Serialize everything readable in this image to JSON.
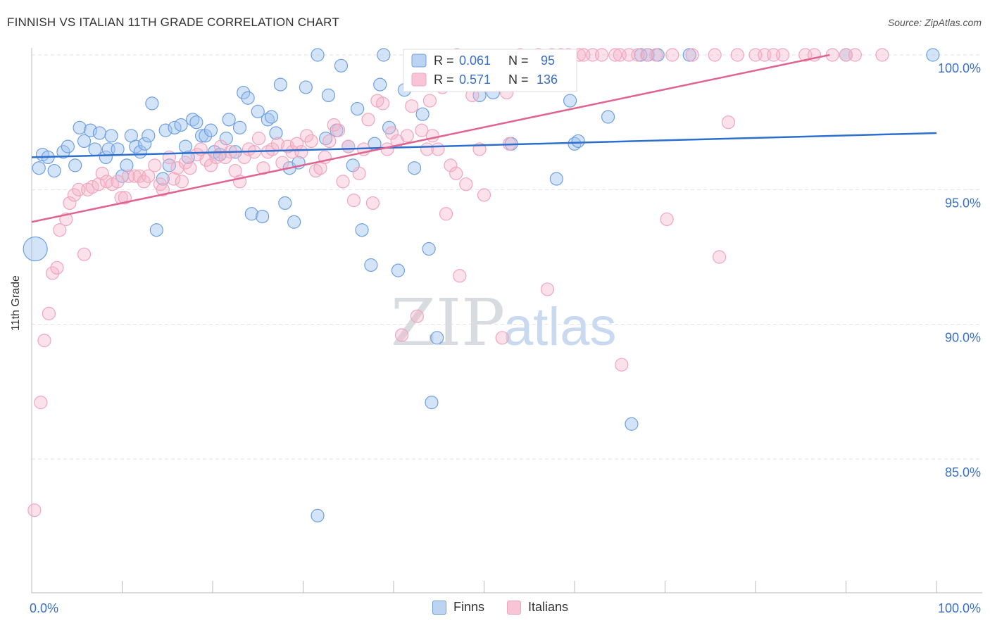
{
  "title": "FINNISH VS ITALIAN 11TH GRADE CORRELATION CHART",
  "source": "Source: ZipAtlas.com",
  "watermark": {
    "zip": "ZIP",
    "atlas": "atlas"
  },
  "colors": {
    "finns": "#6fa0e0",
    "italians": "#f0a6bd",
    "finns_line": "#2d6fcf",
    "italians_line": "#e0648f",
    "value_text": "#3a6fc8"
  },
  "legend": {
    "rows": [
      {
        "r_label": "R =",
        "r_value": "0.061",
        "n_label": "N =",
        "n_value": "95"
      },
      {
        "r_label": "R =",
        "r_value": "0.571",
        "n_label": "N =",
        "n_value": "136"
      }
    ],
    "bottom": [
      {
        "label": "Finns"
      },
      {
        "label": "Italians"
      }
    ]
  },
  "chart_data": {
    "type": "scatter",
    "title": "FINNISH VS ITALIAN 11TH GRADE CORRELATION CHART",
    "xlabel": "",
    "ylabel": "11th Grade",
    "xlim": [
      0,
      100
    ],
    "ylim": [
      80.5,
      101
    ],
    "x_tick_labels": [
      "0.0%",
      "100.0%"
    ],
    "y_ticks": [
      85,
      90,
      95,
      100
    ],
    "y_tick_labels": [
      "85.0%",
      "90.0%",
      "95.0%",
      "100.0%"
    ],
    "grid": true,
    "legend_position": "top-center",
    "series": [
      {
        "name": "Finns",
        "trend": {
          "x": [
            0,
            100
          ],
          "y": [
            96.2,
            97.1
          ]
        },
        "points": [
          [
            0.8,
            95.8
          ],
          [
            1.2,
            96.3
          ],
          [
            1.8,
            96.2
          ],
          [
            2.5,
            95.7
          ],
          [
            3.5,
            96.4
          ],
          [
            4.0,
            96.6
          ],
          [
            4.8,
            95.9
          ],
          [
            5.3,
            97.3
          ],
          [
            5.8,
            96.8
          ],
          [
            6.5,
            97.2
          ],
          [
            7.0,
            96.5
          ],
          [
            7.5,
            97.1
          ],
          [
            8.2,
            96.2
          ],
          [
            8.5,
            96.5
          ],
          [
            8.8,
            97.0
          ],
          [
            9.5,
            96.5
          ],
          [
            10.0,
            95.5
          ],
          [
            10.5,
            95.9
          ],
          [
            11.0,
            97.0
          ],
          [
            11.5,
            96.6
          ],
          [
            12.0,
            96.4
          ],
          [
            12.5,
            96.7
          ],
          [
            12.9,
            97.0
          ],
          [
            13.3,
            98.2
          ],
          [
            13.8,
            93.5
          ],
          [
            14.5,
            95.4
          ],
          [
            14.8,
            97.2
          ],
          [
            15.2,
            95.9
          ],
          [
            15.8,
            97.3
          ],
          [
            16.5,
            97.4
          ],
          [
            17.0,
            96.6
          ],
          [
            17.3,
            96.2
          ],
          [
            17.8,
            97.6
          ],
          [
            18.2,
            97.5
          ],
          [
            18.8,
            97.0
          ],
          [
            19.2,
            97.0
          ],
          [
            19.8,
            97.2
          ],
          [
            20.2,
            96.4
          ],
          [
            20.8,
            96.3
          ],
          [
            21.5,
            96.9
          ],
          [
            21.8,
            97.6
          ],
          [
            22.5,
            96.4
          ],
          [
            23.0,
            97.3
          ],
          [
            23.4,
            98.6
          ],
          [
            23.9,
            98.4
          ],
          [
            24.3,
            94.1
          ],
          [
            25.0,
            97.9
          ],
          [
            25.5,
            94.0
          ],
          [
            26.1,
            97.6
          ],
          [
            26.5,
            97.7
          ],
          [
            27.0,
            97.1
          ],
          [
            27.5,
            98.9
          ],
          [
            28.0,
            94.5
          ],
          [
            28.5,
            95.8
          ],
          [
            29.0,
            93.8
          ],
          [
            29.5,
            96.0
          ],
          [
            30.3,
            98.8
          ],
          [
            31.6,
            100.0
          ],
          [
            32.5,
            96.9
          ],
          [
            32.8,
            98.5
          ],
          [
            33.7,
            97.2
          ],
          [
            34.2,
            99.6
          ],
          [
            35.0,
            96.6
          ],
          [
            35.5,
            95.9
          ],
          [
            36.5,
            93.5
          ],
          [
            37.5,
            92.2
          ],
          [
            37.9,
            96.7
          ],
          [
            38.5,
            98.9
          ],
          [
            38.9,
            100.0
          ],
          [
            39.5,
            97.3
          ],
          [
            40.5,
            92.0
          ],
          [
            41.2,
            98.7
          ],
          [
            42.3,
            95.8
          ],
          [
            43.2,
            97.8
          ],
          [
            43.9,
            92.8
          ],
          [
            44.2,
            87.1
          ],
          [
            44.8,
            89.5
          ],
          [
            49.5,
            98.5
          ],
          [
            51.0,
            98.6
          ],
          [
            53.0,
            96.7
          ],
          [
            58.0,
            95.4
          ],
          [
            59.5,
            98.3
          ],
          [
            60.0,
            96.7
          ],
          [
            60.4,
            96.8
          ],
          [
            63.7,
            97.7
          ],
          [
            66.3,
            86.3
          ],
          [
            67.3,
            100.0
          ],
          [
            68.1,
            100.0
          ],
          [
            69.2,
            100.0
          ],
          [
            72.7,
            100.0
          ],
          [
            90.0,
            100.0
          ],
          [
            99.6,
            100.0
          ],
          [
            0.4,
            92.8
          ],
          [
            31.6,
            82.9
          ],
          [
            36.0,
            98.0
          ]
        ]
      },
      {
        "name": "Italians",
        "trend": {
          "x": [
            0,
            88.2
          ],
          "y": [
            93.8,
            100.0
          ]
        },
        "points": [
          [
            0.3,
            83.1
          ],
          [
            1.0,
            87.1
          ],
          [
            1.4,
            89.4
          ],
          [
            1.9,
            90.4
          ],
          [
            2.3,
            91.9
          ],
          [
            2.8,
            92.1
          ],
          [
            3.1,
            93.5
          ],
          [
            3.8,
            93.9
          ],
          [
            4.2,
            94.5
          ],
          [
            4.7,
            94.8
          ],
          [
            5.2,
            95.0
          ],
          [
            5.8,
            92.6
          ],
          [
            6.2,
            95.0
          ],
          [
            6.7,
            95.1
          ],
          [
            7.4,
            95.2
          ],
          [
            7.8,
            95.6
          ],
          [
            8.3,
            95.3
          ],
          [
            8.9,
            95.2
          ],
          [
            9.5,
            95.3
          ],
          [
            9.9,
            94.7
          ],
          [
            10.3,
            94.7
          ],
          [
            10.7,
            95.5
          ],
          [
            11.4,
            95.5
          ],
          [
            11.9,
            95.5
          ],
          [
            12.4,
            95.3
          ],
          [
            12.9,
            95.5
          ],
          [
            13.6,
            95.9
          ],
          [
            14.2,
            95.2
          ],
          [
            14.5,
            95.0
          ],
          [
            15.2,
            96.2
          ],
          [
            15.7,
            95.4
          ],
          [
            16.1,
            95.8
          ],
          [
            16.6,
            95.3
          ],
          [
            17.0,
            96.0
          ],
          [
            17.5,
            95.8
          ],
          [
            18.3,
            96.3
          ],
          [
            18.7,
            96.5
          ],
          [
            19.3,
            96.1
          ],
          [
            19.8,
            95.9
          ],
          [
            20.4,
            96.2
          ],
          [
            20.9,
            96.6
          ],
          [
            21.4,
            96.2
          ],
          [
            22.0,
            96.4
          ],
          [
            22.5,
            95.7
          ],
          [
            23.0,
            95.3
          ],
          [
            23.5,
            96.2
          ],
          [
            24.0,
            96.5
          ],
          [
            24.6,
            96.4
          ],
          [
            25.1,
            96.9
          ],
          [
            25.6,
            95.8
          ],
          [
            26.1,
            96.4
          ],
          [
            26.6,
            96.5
          ],
          [
            27.2,
            96.7
          ],
          [
            27.7,
            96.0
          ],
          [
            28.3,
            96.6
          ],
          [
            28.8,
            96.4
          ],
          [
            29.3,
            96.7
          ],
          [
            29.8,
            96.4
          ],
          [
            30.4,
            97.0
          ],
          [
            30.9,
            96.8
          ],
          [
            31.4,
            95.7
          ],
          [
            31.9,
            95.8
          ],
          [
            32.4,
            96.2
          ],
          [
            32.9,
            96.8
          ],
          [
            33.4,
            97.4
          ],
          [
            33.9,
            97.2
          ],
          [
            34.4,
            95.3
          ],
          [
            35.0,
            96.6
          ],
          [
            35.6,
            94.6
          ],
          [
            36.2,
            95.6
          ],
          [
            36.7,
            96.5
          ],
          [
            37.2,
            97.6
          ],
          [
            37.7,
            94.5
          ],
          [
            38.2,
            98.3
          ],
          [
            38.8,
            98.2
          ],
          [
            39.3,
            96.5
          ],
          [
            39.8,
            97.1
          ],
          [
            40.4,
            96.8
          ],
          [
            40.9,
            89.6
          ],
          [
            41.5,
            97.0
          ],
          [
            42.0,
            98.1
          ],
          [
            42.6,
            90.3
          ],
          [
            43.1,
            97.2
          ],
          [
            43.7,
            96.5
          ],
          [
            44.3,
            97.0
          ],
          [
            44.9,
            96.5
          ],
          [
            45.4,
            98.8
          ],
          [
            45.8,
            94.1
          ],
          [
            46.3,
            95.9
          ],
          [
            46.9,
            95.6
          ],
          [
            47.3,
            91.8
          ],
          [
            48.0,
            95.2
          ],
          [
            48.7,
            98.5
          ],
          [
            49.5,
            96.5
          ],
          [
            50.0,
            94.8
          ],
          [
            50.7,
            98.9
          ],
          [
            52.0,
            89.5
          ],
          [
            52.8,
            96.7
          ],
          [
            54.0,
            100.0
          ],
          [
            55.5,
            98.9
          ],
          [
            57.0,
            91.3
          ],
          [
            58.5,
            100.0
          ],
          [
            59.3,
            100.0
          ],
          [
            60.5,
            100.0
          ],
          [
            62.0,
            100.0
          ],
          [
            63.0,
            100.0
          ],
          [
            64.5,
            100.0
          ],
          [
            65.2,
            88.5
          ],
          [
            66.0,
            100.0
          ],
          [
            67.0,
            100.0
          ],
          [
            69.0,
            100.0
          ],
          [
            70.2,
            93.9
          ],
          [
            70.8,
            100.0
          ],
          [
            75.5,
            100.0
          ],
          [
            76.0,
            92.5
          ],
          [
            77.0,
            97.5
          ],
          [
            80.0,
            100.0
          ],
          [
            81.0,
            100.0
          ],
          [
            83.0,
            100.0
          ],
          [
            85.5,
            100.0
          ],
          [
            88.5,
            100.0
          ],
          [
            90.0,
            100.0
          ],
          [
            91.0,
            100.0
          ],
          [
            94.0,
            100.0
          ],
          [
            56.0,
            100.0
          ],
          [
            57.5,
            100.0
          ],
          [
            61.0,
            100.0
          ],
          [
            65.0,
            100.0
          ],
          [
            68.0,
            100.0
          ],
          [
            73.0,
            100.0
          ],
          [
            78.0,
            100.0
          ],
          [
            82.0,
            100.0
          ],
          [
            86.5,
            100.0
          ],
          [
            52.5,
            98.6
          ],
          [
            44.0,
            98.3
          ],
          [
            47.0,
            100.0
          ]
        ]
      }
    ]
  }
}
